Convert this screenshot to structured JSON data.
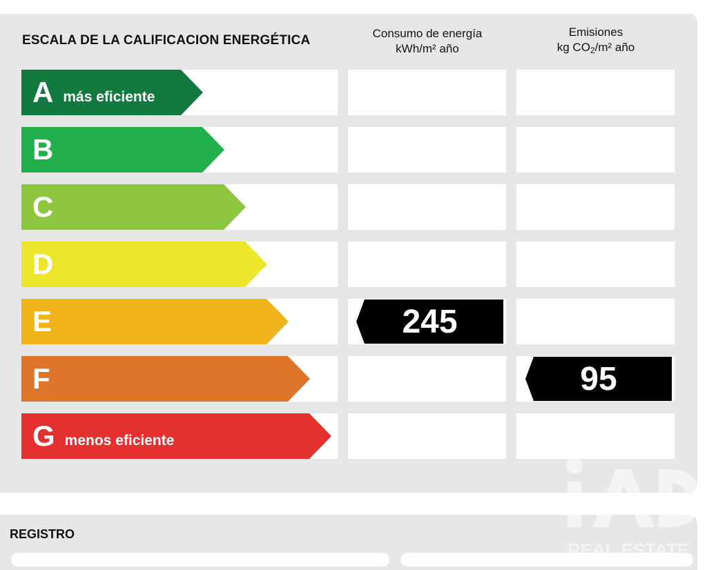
{
  "scale_title": "ESCALA DE LA CALIFICACION ENERGÉTICA",
  "energy_header": {
    "line1": "Consumo de energía",
    "line2": "kWh/m² año"
  },
  "emissions_header": {
    "line1": "Emisiones",
    "line2_pre": "kg CO",
    "line2_sub": "2",
    "line2_post": "/m² año"
  },
  "bands": [
    {
      "letter": "A",
      "desc": "más eficiente",
      "color": "#137a3f"
    },
    {
      "letter": "B",
      "desc": "",
      "color": "#21b04b"
    },
    {
      "letter": "C",
      "desc": "",
      "color": "#8ec63f"
    },
    {
      "letter": "D",
      "desc": "",
      "color": "#eee62a"
    },
    {
      "letter": "E",
      "desc": "",
      "color": "#f0b41b"
    },
    {
      "letter": "F",
      "desc": "",
      "color": "#df7528"
    },
    {
      "letter": "G",
      "desc": "menos eficiente",
      "color": "#e4302f"
    }
  ],
  "energy_rating": {
    "value": "245",
    "band": "E"
  },
  "emissions_rating": {
    "value": "95",
    "band": "F"
  },
  "registro": {
    "title": "REGISTRO"
  },
  "watermark": {
    "brand": "iAD",
    "tagline": "REAL ESTATE"
  }
}
